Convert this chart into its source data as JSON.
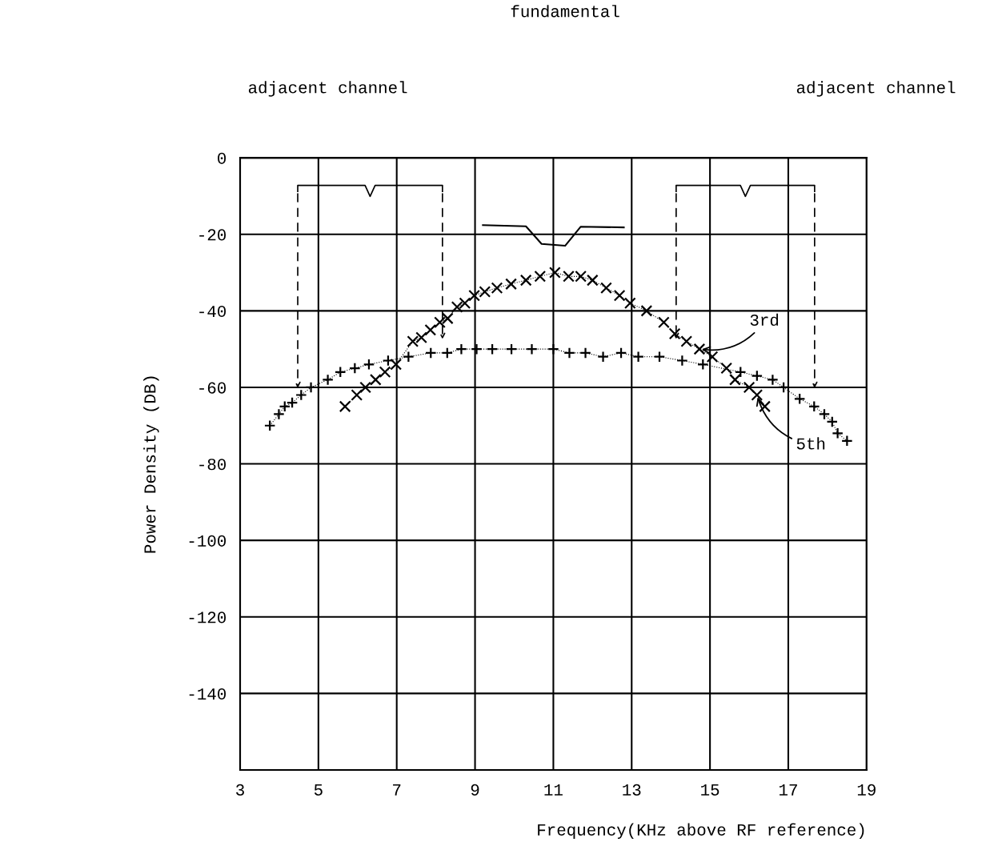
{
  "chart_data": {
    "type": "line",
    "xlabel": "Frequency(KHz above RF reference)",
    "ylabel": "Power Density (DB)",
    "xlim": [
      3,
      19
    ],
    "xticks": [
      3,
      5,
      7,
      9,
      11,
      13,
      15,
      17,
      19
    ],
    "ylim": [
      -160,
      0
    ],
    "yticks": [
      0,
      -20,
      -40,
      -60,
      -80,
      -100,
      -120,
      -140,
      {
        "value": -160,
        "label": null
      }
    ],
    "grid": true,
    "series": [
      {
        "name": "fundamental",
        "color": "#000000",
        "line_style": "solid",
        "marker": "none",
        "x": [
          9.2,
          10.3,
          10.7,
          11.3,
          11.7,
          12.8
        ],
        "values": [
          -17.6,
          -17.9,
          -22.5,
          -23,
          -18,
          -18.2
        ]
      },
      {
        "color": "#000000",
        "line_style": "dotted",
        "marker": "cross",
        "x": [
          5.68,
          5.98,
          6.2,
          6.46,
          6.7,
          6.98,
          7.41,
          7.63,
          7.86,
          8.1,
          8.3,
          8.54,
          8.74,
          8.98,
          9.25,
          9.56,
          9.92,
          10.3,
          10.66,
          11.04,
          11.39,
          11.7,
          12.0,
          12.35,
          12.69,
          12.96,
          13.38,
          13.82,
          14.1,
          14.4,
          14.73,
          15.06,
          15.42,
          15.64,
          16.0,
          16.2,
          16.4
        ],
        "values": [
          -65,
          -62,
          -60,
          -58,
          -56,
          -54,
          -48,
          -47,
          -45,
          -43,
          -42,
          -39,
          -38,
          -36,
          -35,
          -34,
          -33,
          -32,
          -31,
          -30,
          -31,
          -31,
          -32,
          -34,
          -36,
          -38,
          -40,
          -43,
          -46,
          -48,
          -50,
          -52,
          -55,
          -58,
          -60,
          -62,
          -65
        ]
      },
      {
        "color": "#000000",
        "line_style": "dotted",
        "marker": "plus",
        "x": [
          3.76,
          3.99,
          4.14,
          4.33,
          4.56,
          4.81,
          5.24,
          5.56,
          5.93,
          6.29,
          6.78,
          7.3,
          7.87,
          8.29,
          8.65,
          9.04,
          9.44,
          9.93,
          10.45,
          11.0,
          11.41,
          11.82,
          12.27,
          12.73,
          13.17,
          13.71,
          14.29,
          14.82,
          15.78,
          16.2,
          16.6,
          16.88,
          17.29,
          17.66,
          17.92,
          18.12,
          18.26,
          18.5
        ],
        "values": [
          -70,
          -67,
          -65,
          -64,
          -62,
          -60,
          -58,
          -56,
          -55,
          -54,
          -53,
          -52,
          -51,
          -51,
          -50,
          -50,
          -50,
          -50,
          -50,
          -50,
          -51,
          -51,
          -52,
          -51,
          -52,
          -52,
          -53,
          -54,
          -56,
          -57,
          -58,
          -60,
          -63,
          -65,
          -67,
          -69,
          -72,
          -74
        ]
      }
    ],
    "annotations": [
      "adjacent channel",
      "adjacent channel",
      {
        "text": "3rd",
        "x": 14.73,
        "y": -50
      },
      {
        "text": "5th",
        "x": 16.2,
        "y": -62
      }
    ]
  }
}
